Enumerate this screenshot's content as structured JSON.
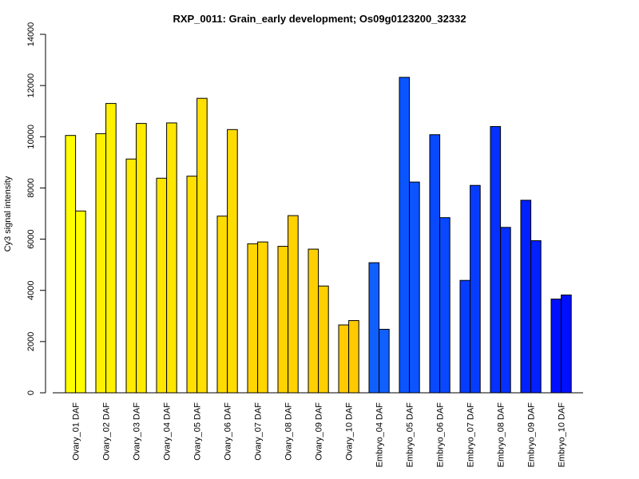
{
  "chart_data": {
    "type": "bar",
    "title": "RXP_0011: Grain_early development; Os09g0123200_32332",
    "ylabel": "Cy3 signal intensity",
    "xlabel": "",
    "ylim": [
      0,
      14000
    ],
    "yticks": [
      0,
      2000,
      4000,
      6000,
      8000,
      10000,
      12000,
      14000
    ],
    "grid": false,
    "legend": "none",
    "categories": [
      "Ovary_01 DAF",
      "Ovary_02 DAF",
      "Ovary_03 DAF",
      "Ovary_04 DAF",
      "Ovary_05 DAF",
      "Ovary_06 DAF",
      "Ovary_07 DAF",
      "Ovary_08 DAF",
      "Ovary_09 DAF",
      "Ovary_10 DAF",
      "Embryo_04 DAF",
      "Embryo_05 DAF",
      "Embryo_06 DAF",
      "Embryo_07 DAF",
      "Embryo_08 DAF",
      "Embryo_09 DAF",
      "Embryo_10 DAF"
    ],
    "colors": [
      "#ffff00",
      "#fff200",
      "#ffeb00",
      "#ffe600",
      "#ffe000",
      "#ffdc00",
      "#ffd600",
      "#ffd200",
      "#ffcf00",
      "#ffca00",
      "#0f60ff",
      "#0a55ff",
      "#0849ff",
      "#063cff",
      "#0530ff",
      "#0320ff",
      "#0010ff"
    ],
    "series": [
      {
        "values": [
          10050,
          10120,
          9130,
          8380,
          8460,
          6900,
          5820,
          5720,
          5610,
          2650,
          5080,
          12320,
          10080,
          4390,
          10400,
          7520,
          3660
        ]
      },
      {
        "values": [
          7100,
          11300,
          10520,
          10540,
          11500,
          10280,
          5890,
          6920,
          4170,
          2820,
          2480,
          8230,
          6840,
          8100,
          6460,
          5940,
          3820
        ]
      }
    ]
  }
}
